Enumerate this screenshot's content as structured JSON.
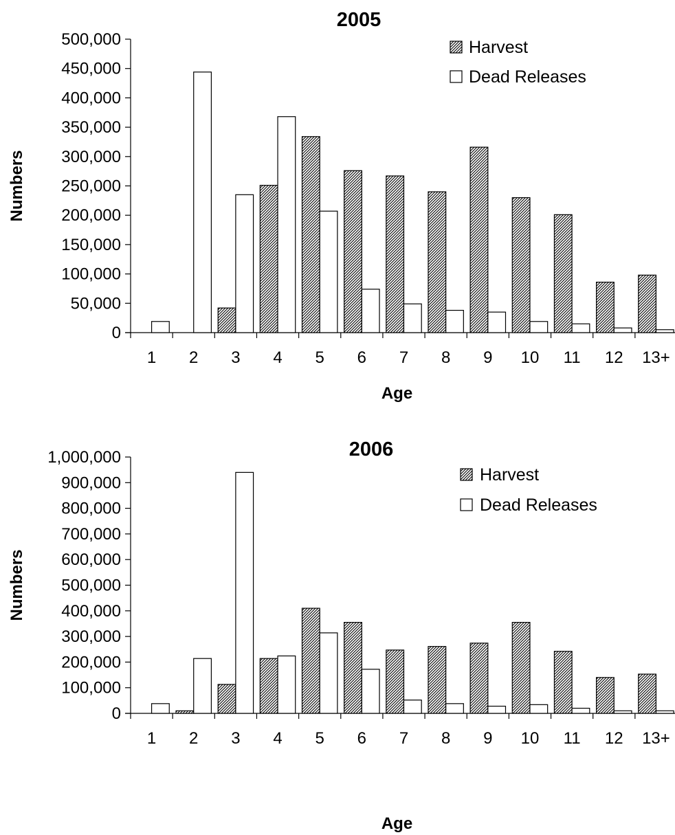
{
  "chart_data": [
    {
      "type": "bar",
      "title": "2005",
      "xlabel": "Age",
      "ylabel": "Numbers",
      "ylim": [
        0,
        500000
      ],
      "ytick_step": 50000,
      "grid": false,
      "legend_position": "top-right",
      "categories": [
        "1",
        "2",
        "3",
        "4",
        "5",
        "6",
        "7",
        "8",
        "9",
        "10",
        "11",
        "12",
        "13+"
      ],
      "series": [
        {
          "name": "Harvest",
          "pattern": "hatched",
          "values": [
            0,
            0,
            42000,
            251000,
            334000,
            276000,
            267000,
            240000,
            316000,
            230000,
            201000,
            86000,
            98000
          ]
        },
        {
          "name": "Dead Releases",
          "pattern": "open",
          "values": [
            19000,
            444000,
            235000,
            368000,
            207000,
            74000,
            49000,
            38000,
            35000,
            19000,
            15000,
            8000,
            5000
          ]
        }
      ]
    },
    {
      "type": "bar",
      "title": "2006",
      "xlabel": "Age",
      "ylabel": "Numbers",
      "ylim": [
        0,
        1000000
      ],
      "ytick_step": 100000,
      "grid": false,
      "legend_position": "top-right",
      "categories": [
        "1",
        "2",
        "3",
        "4",
        "5",
        "6",
        "7",
        "8",
        "9",
        "10",
        "11",
        "12",
        "13+"
      ],
      "series": [
        {
          "name": "Harvest",
          "pattern": "hatched",
          "values": [
            0,
            10000,
            113000,
            214000,
            410000,
            355000,
            247000,
            261000,
            274000,
            355000,
            242000,
            140000,
            153000
          ]
        },
        {
          "name": "Dead Releases",
          "pattern": "open",
          "values": [
            38000,
            214000,
            940000,
            224000,
            314000,
            172000,
            52000,
            38000,
            28000,
            34000,
            20000,
            10000,
            10000
          ]
        }
      ]
    }
  ],
  "colors": {
    "bar_fill_open": "#ffffff",
    "bar_stroke": "#000000",
    "hatch": "#000000"
  }
}
